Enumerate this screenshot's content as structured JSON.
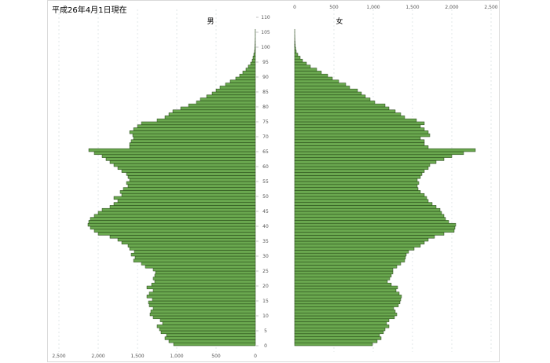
{
  "chart_data": {
    "type": "bar",
    "title": "平成26年4月1日現在",
    "orientation": "horizontal-population-pyramid",
    "age_ticks": [
      "0",
      "5",
      "10",
      "15",
      "20",
      "25",
      "30",
      "35",
      "40",
      "45",
      "50",
      "55",
      "60",
      "65",
      "70",
      "75",
      "80",
      "85",
      "90",
      "95",
      "100",
      "105",
      "110"
    ],
    "male_ticks": [
      "2,500",
      "2,000",
      "1,500",
      "1,000",
      "500",
      "0"
    ],
    "female_ticks": [
      "0",
      "500",
      "1,000",
      "1,500",
      "2,000",
      "2,500"
    ],
    "xlim": [
      0,
      2500
    ],
    "ylim": [
      0,
      110
    ],
    "grid": true,
    "bar_color": "#6aa84f",
    "bar_edge": "#1f3d10",
    "ages": [
      0,
      1,
      2,
      3,
      4,
      5,
      6,
      7,
      8,
      9,
      10,
      11,
      12,
      13,
      14,
      15,
      16,
      17,
      18,
      19,
      20,
      21,
      22,
      23,
      24,
      25,
      26,
      27,
      28,
      29,
      30,
      31,
      32,
      33,
      34,
      35,
      36,
      37,
      38,
      39,
      40,
      41,
      42,
      43,
      44,
      45,
      46,
      47,
      48,
      49,
      50,
      51,
      52,
      53,
      54,
      55,
      56,
      57,
      58,
      59,
      60,
      61,
      62,
      63,
      64,
      65,
      66,
      67,
      68,
      69,
      70,
      71,
      72,
      73,
      74,
      75,
      76,
      77,
      78,
      79,
      80,
      81,
      82,
      83,
      84,
      85,
      86,
      87,
      88,
      89,
      90,
      91,
      92,
      93,
      94,
      95,
      96,
      97,
      98,
      99,
      100,
      101,
      102,
      103,
      104,
      105
    ],
    "series": [
      {
        "name": "男",
        "values": [
          1040,
          1100,
          1150,
          1130,
          1200,
          1220,
          1250,
          1180,
          1210,
          1300,
          1340,
          1330,
          1300,
          1350,
          1360,
          1310,
          1380,
          1350,
          1300,
          1380,
          1320,
          1280,
          1300,
          1280,
          1270,
          1300,
          1400,
          1450,
          1550,
          1530,
          1580,
          1540,
          1600,
          1620,
          1700,
          1750,
          1850,
          2000,
          2050,
          2100,
          2130,
          2120,
          2100,
          2050,
          2000,
          1950,
          1850,
          1800,
          1750,
          1800,
          1700,
          1720,
          1680,
          1620,
          1640,
          1600,
          1620,
          1640,
          1700,
          1750,
          1800,
          1850,
          1900,
          1950,
          2050,
          2120,
          1600,
          1600,
          1580,
          1550,
          1560,
          1600,
          1550,
          1500,
          1450,
          1250,
          1150,
          1100,
          1050,
          950,
          850,
          750,
          700,
          620,
          550,
          500,
          450,
          380,
          320,
          250,
          200,
          160,
          120,
          90,
          60,
          40,
          30,
          20,
          10,
          6,
          4,
          3,
          2,
          1,
          1,
          1
        ]
      },
      {
        "name": "女",
        "values": [
          990,
          1050,
          1100,
          1080,
          1130,
          1150,
          1200,
          1170,
          1200,
          1270,
          1300,
          1280,
          1260,
          1320,
          1340,
          1350,
          1360,
          1330,
          1290,
          1310,
          1230,
          1180,
          1210,
          1230,
          1250,
          1250,
          1300,
          1350,
          1400,
          1410,
          1420,
          1450,
          1520,
          1600,
          1650,
          1700,
          1780,
          1900,
          2030,
          2040,
          2050,
          1960,
          1920,
          1900,
          1870,
          1850,
          1800,
          1750,
          1700,
          1680,
          1650,
          1600,
          1570,
          1560,
          1580,
          1560,
          1600,
          1620,
          1650,
          1700,
          1720,
          1800,
          1900,
          2000,
          2150,
          2300,
          1700,
          1650,
          1650,
          1600,
          1720,
          1700,
          1650,
          1600,
          1650,
          1550,
          1400,
          1350,
          1280,
          1200,
          1150,
          1020,
          960,
          900,
          850,
          800,
          700,
          650,
          560,
          480,
          420,
          340,
          280,
          200,
          150,
          100,
          70,
          40,
          20,
          12,
          8,
          5,
          3,
          2,
          1,
          1
        ]
      }
    ]
  }
}
